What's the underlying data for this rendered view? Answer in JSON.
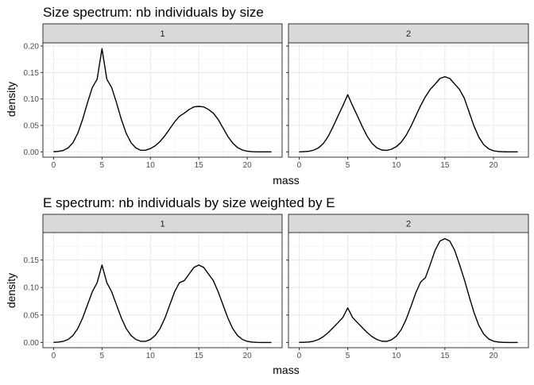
{
  "plots": [
    {
      "title": "Size spectrum: nb individuals by size",
      "xlabel": "mass",
      "ylabel": "density"
    },
    {
      "title": "E spectrum: nb individuals by size weighted by E",
      "xlabel": "mass",
      "ylabel": "density"
    }
  ],
  "chart_data": [
    {
      "type": "line",
      "title": "Size spectrum: nb individuals by size",
      "xlabel": "mass",
      "ylabel": "density",
      "grid": true,
      "xlim": [
        -1.1,
        23.6
      ],
      "ylim": [
        -0.01,
        0.206
      ],
      "xticks": [
        0,
        5,
        10,
        15,
        20
      ],
      "yticks": [
        0.0,
        0.05,
        0.1,
        0.15,
        0.2
      ],
      "ytick_labels": [
        "0.00",
        "0.05",
        "0.10",
        "0.15",
        "0.20"
      ],
      "facets": [
        {
          "label": "1",
          "x": [
            0,
            0.5,
            1,
            1.5,
            2,
            2.5,
            3,
            3.5,
            4,
            4.5,
            5,
            5.5,
            6,
            6.5,
            7,
            7.5,
            8,
            8.5,
            9,
            9.5,
            10,
            10.5,
            11,
            11.5,
            12,
            12.5,
            13,
            13.5,
            14,
            14.5,
            15,
            15.5,
            16,
            16.5,
            17,
            17.5,
            18,
            18.5,
            19,
            19.5,
            20,
            20.5,
            21,
            21.5,
            22,
            22.5
          ],
          "y": [
            0.0003,
            0.0009,
            0.0027,
            0.0074,
            0.0173,
            0.0351,
            0.0614,
            0.0929,
            0.1215,
            0.1374,
            0.195,
            0.1374,
            0.1215,
            0.0929,
            0.0614,
            0.0351,
            0.0173,
            0.0074,
            0.003,
            0.0032,
            0.0062,
            0.0116,
            0.0197,
            0.0307,
            0.0436,
            0.0566,
            0.0673,
            0.0732,
            0.0801,
            0.085,
            0.086,
            0.085,
            0.0801,
            0.0732,
            0.0612,
            0.0452,
            0.0292,
            0.0166,
            0.0081,
            0.0035,
            0.0013,
            0.0004,
            0.0001,
            0.0,
            0.0,
            0.0
          ]
        },
        {
          "label": "2",
          "x": [
            0,
            0.5,
            1,
            1.5,
            2,
            2.5,
            3,
            3.5,
            4,
            4.5,
            5,
            5.5,
            6,
            6.5,
            7,
            7.5,
            8,
            8.5,
            9,
            9.5,
            10,
            10.5,
            11,
            11.5,
            12,
            12.5,
            13,
            13.5,
            14,
            14.5,
            15,
            15.5,
            16,
            16.5,
            17,
            17.5,
            18,
            18.5,
            19,
            19.5,
            20,
            20.5,
            21,
            21.5,
            22,
            22.5
          ],
          "y": [
            0.0001,
            0.0004,
            0.0012,
            0.0033,
            0.0077,
            0.0161,
            0.0296,
            0.0478,
            0.0679,
            0.0872,
            0.108,
            0.0872,
            0.0679,
            0.0478,
            0.0296,
            0.0161,
            0.0077,
            0.0035,
            0.0028,
            0.005,
            0.0098,
            0.0182,
            0.031,
            0.0481,
            0.0677,
            0.0872,
            0.1044,
            0.1183,
            0.1283,
            0.1389,
            0.142,
            0.1389,
            0.1283,
            0.1183,
            0.1014,
            0.0749,
            0.0486,
            0.0276,
            0.0136,
            0.0058,
            0.0021,
            0.0007,
            0.0002,
            0.0,
            0.0,
            0.0
          ]
        }
      ]
    },
    {
      "type": "line",
      "title": "E spectrum: nb individuals by size weighted by E",
      "xlabel": "mass",
      "ylabel": "density",
      "grid": true,
      "xlim": [
        -1.1,
        23.6
      ],
      "ylim": [
        -0.0095,
        0.2
      ],
      "xticks": [
        0,
        5,
        10,
        15,
        20
      ],
      "yticks": [
        0.0,
        0.05,
        0.1,
        0.15
      ],
      "ytick_labels": [
        "0.00",
        "0.05",
        "0.10",
        "0.15"
      ],
      "facets": [
        {
          "label": "1",
          "x": [
            0,
            0.5,
            1,
            1.5,
            2,
            2.5,
            3,
            3.5,
            4,
            4.5,
            5,
            5.5,
            6,
            6.5,
            7,
            7.5,
            8,
            8.5,
            9,
            9.5,
            10,
            10.5,
            11,
            11.5,
            12,
            12.5,
            13,
            13.5,
            14,
            14.5,
            15,
            15.5,
            16,
            16.5,
            17,
            17.5,
            18,
            18.5,
            19,
            19.5,
            20,
            20.5,
            21,
            21.5,
            22,
            22.5
          ],
          "y": [
            0.0002,
            0.0007,
            0.0021,
            0.0055,
            0.0126,
            0.0253,
            0.0445,
            0.0684,
            0.0922,
            0.1089,
            0.141,
            0.1089,
            0.0922,
            0.0684,
            0.0445,
            0.0253,
            0.0126,
            0.0055,
            0.0022,
            0.0021,
            0.0054,
            0.0128,
            0.0254,
            0.0444,
            0.0684,
            0.0922,
            0.1089,
            0.1125,
            0.1247,
            0.1367,
            0.141,
            0.1367,
            0.1247,
            0.1125,
            0.0922,
            0.0684,
            0.0445,
            0.0253,
            0.0126,
            0.0055,
            0.0021,
            0.0007,
            0.0002,
            0.0,
            0.0,
            0.0
          ]
        },
        {
          "label": "2",
          "x": [
            0,
            0.5,
            1,
            1.5,
            2,
            2.5,
            3,
            3.5,
            4,
            4.5,
            5,
            5.5,
            6,
            6.5,
            7,
            7.5,
            8,
            8.5,
            9,
            9.5,
            10,
            10.5,
            11,
            11.5,
            12,
            12.5,
            13,
            13.5,
            14,
            14.5,
            15,
            15.5,
            16,
            16.5,
            17,
            17.5,
            18,
            18.5,
            19,
            19.5,
            20,
            20.5,
            21,
            21.5,
            22,
            22.5
          ],
          "y": [
            0.0001,
            0.0003,
            0.0009,
            0.0024,
            0.0055,
            0.0107,
            0.0181,
            0.027,
            0.0361,
            0.0455,
            0.063,
            0.0455,
            0.0361,
            0.027,
            0.0181,
            0.0107,
            0.0055,
            0.0024,
            0.0019,
            0.0049,
            0.0114,
            0.0232,
            0.0415,
            0.0652,
            0.0902,
            0.1099,
            0.1182,
            0.1423,
            0.168,
            0.1847,
            0.189,
            0.1847,
            0.168,
            0.1423,
            0.1146,
            0.0838,
            0.0543,
            0.0308,
            0.0152,
            0.0065,
            0.0024,
            0.0008,
            0.0002,
            0.0,
            0.0,
            0.0
          ]
        }
      ]
    }
  ]
}
